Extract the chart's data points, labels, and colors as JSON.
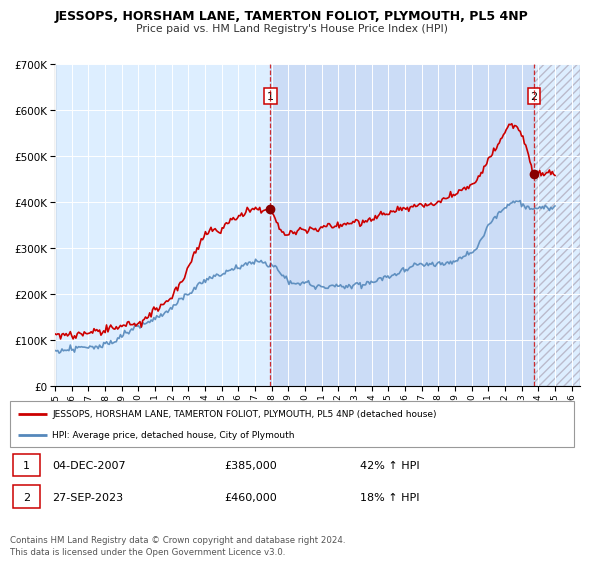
{
  "title": "JESSOPS, HORSHAM LANE, TAMERTON FOLIOT, PLYMOUTH, PL5 4NP",
  "subtitle": "Price paid vs. HM Land Registry's House Price Index (HPI)",
  "legend_line1": "JESSOPS, HORSHAM LANE, TAMERTON FOLIOT, PLYMOUTH, PL5 4NP (detached house)",
  "legend_line2": "HPI: Average price, detached house, City of Plymouth",
  "sale1_date": "04-DEC-2007",
  "sale1_price": "£385,000",
  "sale1_hpi": "42% ↑ HPI",
  "sale2_date": "27-SEP-2023",
  "sale2_price": "£460,000",
  "sale2_hpi": "18% ↑ HPI",
  "footer": "Contains HM Land Registry data © Crown copyright and database right 2024.\nThis data is licensed under the Open Government Licence v3.0.",
  "red_color": "#cc0000",
  "blue_color": "#5588bb",
  "bg_color": "#ddeeff",
  "bg_highlight": "#cce0ff",
  "plot_bg": "#ffffff",
  "ylim": [
    0,
    700000
  ],
  "xlim_start": 1995.0,
  "xlim_end": 2026.5,
  "sale1_x": 2007.92,
  "sale1_y": 385000,
  "sale2_x": 2023.74,
  "sale2_y": 460000
}
